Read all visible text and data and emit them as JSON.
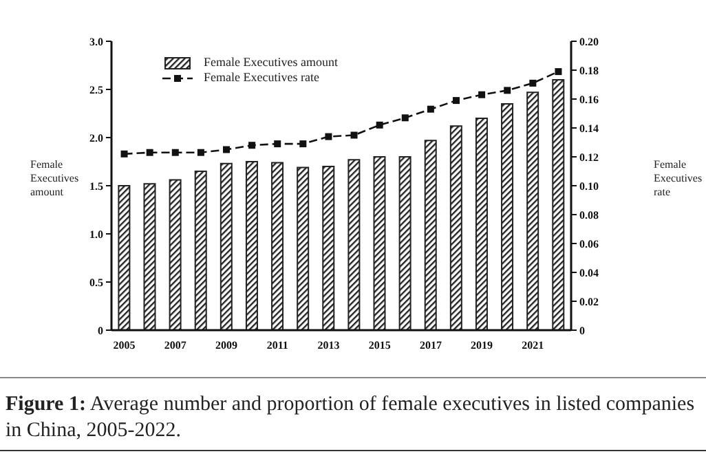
{
  "chart_data": {
    "type": "bar",
    "title": "Figure 1: Average number and proportion of female executives in listed companies in China, 2005-2022.",
    "ylabel": "Female Executives amount",
    "y2label": "Female Executives rate",
    "categories": [
      "2005",
      null,
      "2007",
      null,
      "2009",
      null,
      "2011",
      null,
      "2013",
      null,
      "2015",
      null,
      "2017",
      null,
      "2019",
      null,
      "2021",
      null
    ],
    "series": [
      {
        "name": "Female Executives amount",
        "color": "#222222",
        "values": [
          1.5,
          1.52,
          1.56,
          1.65,
          1.73,
          1.75,
          1.74,
          1.69,
          1.7,
          1.77,
          1.8,
          1.8,
          1.97,
          2.12,
          2.2,
          2.35,
          2.47,
          2.6
        ]
      },
      {
        "name": "Female Executives rate",
        "type": "line",
        "axis": "y2",
        "color": "#111111",
        "values": [
          0.122,
          0.123,
          0.123,
          0.123,
          0.125,
          0.128,
          0.129,
          0.129,
          0.134,
          0.135,
          0.142,
          0.147,
          0.153,
          0.159,
          0.163,
          0.166,
          0.171,
          0.179
        ]
      }
    ],
    "ylim": [
      0,
      3.0
    ],
    "yticks": [
      0,
      0.5,
      {
        "value": 1,
        "label": "1.0"
      },
      1.5,
      {
        "value": 2,
        "label": "2.0"
      },
      2.5,
      {
        "value": 3,
        "label": "3.0"
      }
    ],
    "y2lim": [
      0,
      0.2
    ],
    "y2ticks": [
      0,
      0.02,
      0.04,
      0.06,
      0.08,
      {
        "value": 0.1,
        "label": "0.10"
      },
      0.12,
      0.14,
      0.16,
      0.18,
      {
        "value": 0.2,
        "label": "0.20"
      }
    ],
    "grid": false,
    "legend": "top left",
    "marker": "square",
    "line_style": "dashed"
  }
}
